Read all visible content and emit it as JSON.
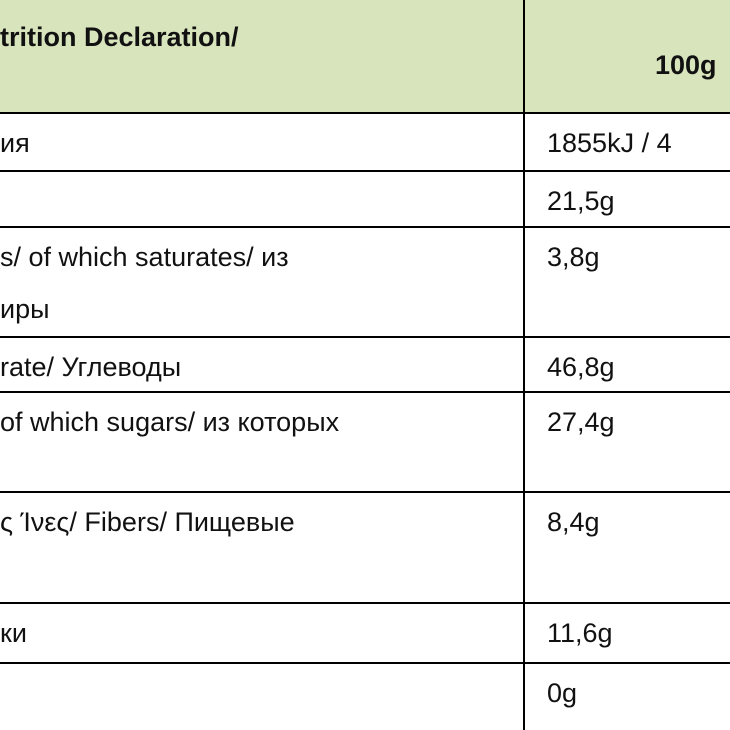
{
  "header": {
    "label": "trition Declaration/",
    "value": "100g"
  },
  "rows": [
    {
      "label": [
        "ия"
      ],
      "value": "1855kJ / 4"
    },
    {
      "value": "21,5g"
    },
    {
      "label": [
        "s/ of which saturates/ из",
        "иры"
      ],
      "value": "3,8g"
    },
    {
      "label": [
        "rate/ Углеводы"
      ],
      "value": "46,8g"
    },
    {
      "label": [
        "of which sugars/ из которых"
      ],
      "value": "27,4g"
    },
    {
      "label": [
        "ς Ίνες/ Fibers/ Пищевые"
      ],
      "value": "8,4g"
    },
    {
      "label": [
        "ки"
      ],
      "value": "11,6g"
    },
    {
      "value": "0g"
    }
  ]
}
